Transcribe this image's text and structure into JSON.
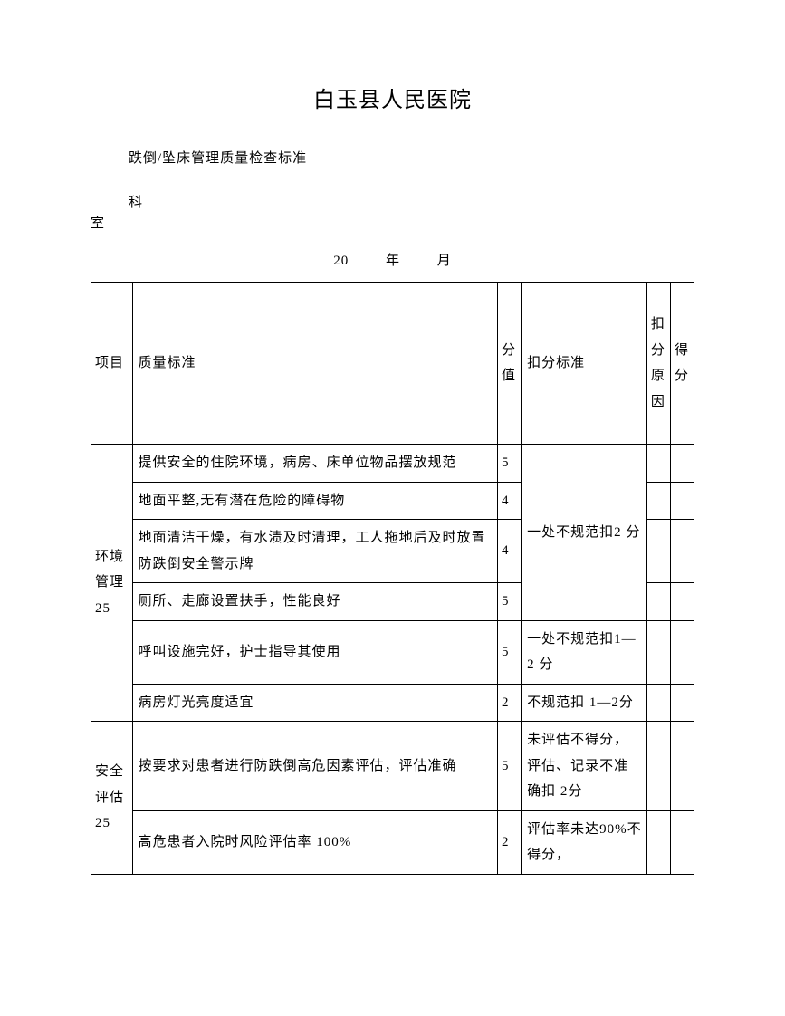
{
  "title": "白玉县人民医院",
  "subtitle": "跌倒/坠床管理质量检查标准",
  "dept_ke": "科",
  "dept_shi": "室",
  "date_prefix": "20",
  "date_year": "年",
  "date_month": "月",
  "headers": {
    "project": "项目",
    "standard": "质量标准",
    "score": "分值",
    "deduct": "扣分标准",
    "reason": "扣分原因",
    "final": "得分"
  },
  "sections": [
    {
      "category": "环境管理25",
      "rows": [
        {
          "standard": "提供安全的住院环境，病房、床单位物品摆放规范",
          "score": "5"
        },
        {
          "standard": "地面平整,无有潜在危险的障碍物",
          "score": "4"
        },
        {
          "standard": "地面清洁干燥，有水渍及时清理，工人拖地后及时放置防跌倒安全警示牌",
          "score": "4"
        },
        {
          "standard": "厕所、走廊设置扶手，性能良好",
          "score": "5"
        }
      ],
      "deduct_group1": "一处不规范扣2 分",
      "rows2": [
        {
          "standard": "呼叫设施完好，护士指导其使用",
          "score": "5",
          "deduct": "一处不规范扣1—2 分"
        },
        {
          "standard": "病房灯光亮度适宜",
          "score": "2",
          "deduct": "不规范扣 1—2分"
        }
      ]
    },
    {
      "category": "安全评估25",
      "rows": [
        {
          "standard": "按要求对患者进行防跌倒高危因素评估，评估准确",
          "score": "5",
          "deduct": "未评估不得分，评估、记录不准确扣 2分"
        },
        {
          "standard": "高危患者入院时风险评估率 100%",
          "score": "2",
          "deduct": "评估率未达90%不得分，"
        }
      ]
    }
  ],
  "colors": {
    "background": "#ffffff",
    "text": "#000000",
    "border": "#000000"
  },
  "typography": {
    "title_fontsize": 24,
    "body_fontsize": 15,
    "font_family": "SimSun"
  }
}
